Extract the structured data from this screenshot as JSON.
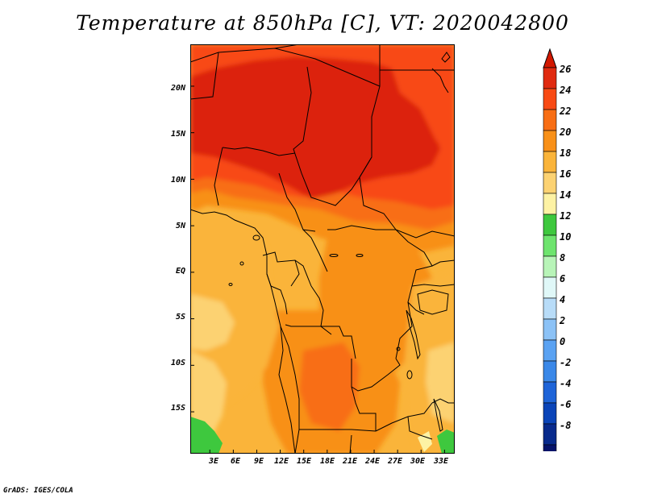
{
  "title": "Temperature at 850hPa [C], VT: 2020042800",
  "credit": "GrADS: IGES/COLA",
  "lat_labels": [
    "20N",
    "15N",
    "10N",
    "5N",
    "EQ",
    "5S",
    "10S",
    "15S"
  ],
  "lon_labels": [
    "3E",
    "6E",
    "9E",
    "12E",
    "15E",
    "18E",
    "21E",
    "24E",
    "27E",
    "30E",
    "33E"
  ],
  "map_extent": {
    "lon_min": 0.5,
    "lon_max": 34.3,
    "lat_min": -19.5,
    "lat_max": 24.5
  },
  "colorbar": {
    "labels": [
      "26",
      "24",
      "22",
      "20",
      "18",
      "16",
      "14",
      "12",
      "10",
      "8",
      "6",
      "4",
      "2",
      "0",
      "-2",
      "-4",
      "-6",
      "-8"
    ],
    "colors": [
      "#e02a10",
      "#f84a14",
      "#f86e14",
      "#f89018",
      "#fab43a",
      "#fcd272",
      "#fdf2a4",
      "#3ec83e",
      "#6ee46e",
      "#b8f4b8",
      "#e0f8f8",
      "#b8dcf8",
      "#8cc2f6",
      "#5aa2f2",
      "#3a88e8",
      "#1e64d8",
      "#0a44b8",
      "#082a8c",
      "#06136a"
    ]
  },
  "colors": {
    "over": "#d21800",
    "under": "#dcdcf0"
  }
}
